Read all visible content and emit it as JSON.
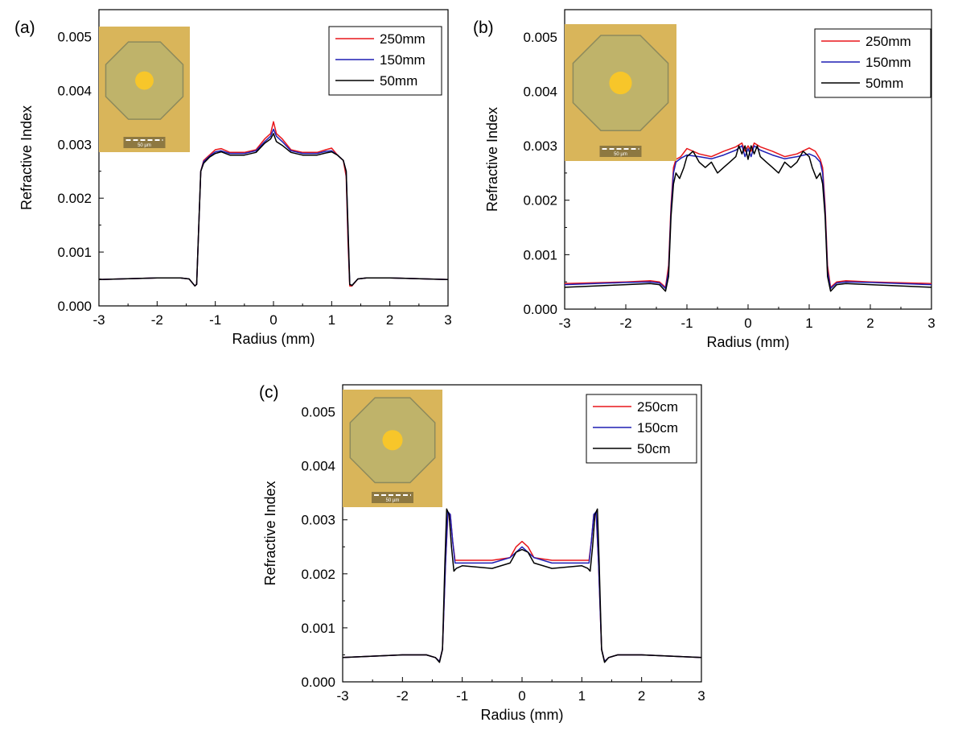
{
  "colors": {
    "red": "#e8161b",
    "blue": "#1f1fb4",
    "black": "#000000",
    "inset_bg": "#d9b55a",
    "inset_oct": "#bfb36a",
    "inset_core": "#f7c62a"
  },
  "chart_data": [
    {
      "type": "line",
      "panel_label": "(a)",
      "xlabel": "Radius (mm)",
      "ylabel": "Refractive Index",
      "xlim": [
        -3,
        3
      ],
      "ylim": [
        0,
        0.0055
      ],
      "xticks": [
        "-3",
        "-2",
        "-1",
        "0",
        "1",
        "2",
        "3"
      ],
      "yticks": [
        "0.000",
        "0.001",
        "0.002",
        "0.003",
        "0.004",
        "0.005"
      ],
      "legend_position": "top-right",
      "inset_scale_label": "50 µm",
      "series": [
        {
          "name": "250mm",
          "color": "#e8161b",
          "x": [
            -3,
            -2,
            -1.6,
            -1.45,
            -1.35,
            -1.32,
            -1.28,
            -1.25,
            -1.2,
            -1.1,
            -1.0,
            -0.9,
            -0.75,
            -0.5,
            -0.3,
            -0.15,
            -0.05,
            0,
            0.05,
            0.15,
            0.3,
            0.5,
            0.75,
            0.9,
            1.0,
            1.1,
            1.2,
            1.25,
            1.28,
            1.31,
            1.35,
            1.45,
            1.6,
            2,
            3
          ],
          "y": [
            0.00049,
            0.00052,
            0.00052,
            0.0005,
            0.00037,
            0.0004,
            0.0016,
            0.0025,
            0.0027,
            0.0028,
            0.0029,
            0.00292,
            0.00285,
            0.00285,
            0.0029,
            0.0031,
            0.0032,
            0.00342,
            0.0032,
            0.0031,
            0.0029,
            0.00285,
            0.00285,
            0.0029,
            0.00293,
            0.0028,
            0.0027,
            0.0024,
            0.0012,
            0.00037,
            0.00037,
            0.0005,
            0.00052,
            0.00052,
            0.00049
          ]
        },
        {
          "name": "150mm",
          "color": "#1f1fb4",
          "x": [
            -3,
            -2,
            -1.6,
            -1.45,
            -1.35,
            -1.32,
            -1.28,
            -1.25,
            -1.2,
            -1.1,
            -1.0,
            -0.9,
            -0.75,
            -0.5,
            -0.3,
            -0.15,
            -0.05,
            0,
            0.05,
            0.15,
            0.3,
            0.5,
            0.75,
            0.9,
            1.0,
            1.1,
            1.2,
            1.25,
            1.28,
            1.31,
            1.35,
            1.45,
            1.6,
            2,
            3
          ],
          "y": [
            0.00049,
            0.00052,
            0.00052,
            0.0005,
            0.00037,
            0.0004,
            0.0016,
            0.0025,
            0.00268,
            0.00278,
            0.00286,
            0.00288,
            0.00283,
            0.00283,
            0.00288,
            0.00305,
            0.00315,
            0.00328,
            0.00315,
            0.00305,
            0.00288,
            0.00283,
            0.00283,
            0.00287,
            0.00288,
            0.0028,
            0.0027,
            0.0025,
            0.0014,
            0.0004,
            0.00038,
            0.0005,
            0.00052,
            0.00052,
            0.00049
          ]
        },
        {
          "name": "50mm",
          "color": "#000000",
          "x": [
            -3,
            -2,
            -1.6,
            -1.45,
            -1.35,
            -1.32,
            -1.28,
            -1.25,
            -1.2,
            -1.1,
            -1.0,
            -0.9,
            -0.75,
            -0.5,
            -0.3,
            -0.15,
            -0.05,
            0,
            0.05,
            0.15,
            0.3,
            0.5,
            0.75,
            0.9,
            1.0,
            1.1,
            1.2,
            1.25,
            1.28,
            1.31,
            1.35,
            1.45,
            1.6,
            2,
            3
          ],
          "y": [
            0.00049,
            0.00052,
            0.00052,
            0.0005,
            0.00037,
            0.0004,
            0.0016,
            0.0025,
            0.00265,
            0.00276,
            0.00283,
            0.00286,
            0.0028,
            0.0028,
            0.00285,
            0.00302,
            0.0031,
            0.0032,
            0.00305,
            0.00298,
            0.00285,
            0.0028,
            0.0028,
            0.00284,
            0.00286,
            0.0028,
            0.0027,
            0.0025,
            0.0015,
            0.0004,
            0.00038,
            0.0005,
            0.00052,
            0.00052,
            0.00049
          ]
        }
      ]
    },
    {
      "type": "line",
      "panel_label": "(b)",
      "xlabel": "Radius (mm)",
      "ylabel": "Refractive Index",
      "xlim": [
        -3,
        3
      ],
      "ylim": [
        0,
        0.0055
      ],
      "xticks": [
        "-3",
        "-2",
        "-1",
        "0",
        "1",
        "2",
        "3"
      ],
      "yticks": [
        "0.000",
        "0.001",
        "0.002",
        "0.003",
        "0.004",
        "0.005"
      ],
      "legend_position": "top-right",
      "inset_scale_label": "50 µm",
      "series": [
        {
          "name": "250mm",
          "color": "#e8161b",
          "x": [
            -3,
            -2,
            -1.6,
            -1.45,
            -1.35,
            -1.3,
            -1.26,
            -1.22,
            -1.18,
            -1.1,
            -1.0,
            -0.8,
            -0.6,
            -0.4,
            -0.2,
            -0.1,
            -0.05,
            0,
            0.05,
            0.1,
            0.2,
            0.4,
            0.6,
            0.8,
            1.0,
            1.1,
            1.18,
            1.22,
            1.26,
            1.3,
            1.35,
            1.45,
            1.6,
            2,
            3
          ],
          "y": [
            0.00047,
            0.0005,
            0.00052,
            0.0005,
            0.0004,
            0.0008,
            0.0019,
            0.0026,
            0.00275,
            0.0028,
            0.00295,
            0.00285,
            0.0028,
            0.0029,
            0.00298,
            0.00305,
            0.0029,
            0.003,
            0.0029,
            0.00305,
            0.00298,
            0.0029,
            0.0028,
            0.00285,
            0.00296,
            0.0029,
            0.00275,
            0.0026,
            0.0019,
            0.0008,
            0.0004,
            0.0005,
            0.00052,
            0.0005,
            0.00047
          ]
        },
        {
          "name": "150mm",
          "color": "#1f1fb4",
          "x": [
            -3,
            -2,
            -1.6,
            -1.45,
            -1.35,
            -1.3,
            -1.26,
            -1.22,
            -1.18,
            -1.1,
            -1.0,
            -0.8,
            -0.6,
            -0.4,
            -0.2,
            -0.1,
            -0.05,
            0,
            0.05,
            0.1,
            0.2,
            0.4,
            0.6,
            0.8,
            1.0,
            1.1,
            1.18,
            1.22,
            1.26,
            1.3,
            1.35,
            1.45,
            1.6,
            2,
            3
          ],
          "y": [
            0.00045,
            0.00049,
            0.0005,
            0.00048,
            0.00038,
            0.0007,
            0.0018,
            0.0025,
            0.0027,
            0.00277,
            0.00283,
            0.0028,
            0.00276,
            0.00283,
            0.00292,
            0.003,
            0.0028,
            0.00295,
            0.0028,
            0.003,
            0.00292,
            0.00283,
            0.00276,
            0.0028,
            0.00285,
            0.0028,
            0.0027,
            0.0025,
            0.0018,
            0.0007,
            0.00038,
            0.00048,
            0.0005,
            0.00049,
            0.00045
          ]
        },
        {
          "name": "50mm",
          "color": "#000000",
          "x": [
            -3,
            -2,
            -1.6,
            -1.45,
            -1.35,
            -1.3,
            -1.26,
            -1.22,
            -1.18,
            -1.12,
            -1.05,
            -1.0,
            -0.9,
            -0.8,
            -0.7,
            -0.6,
            -0.5,
            -0.4,
            -0.3,
            -0.2,
            -0.15,
            -0.1,
            -0.05,
            0,
            0.05,
            0.1,
            0.15,
            0.2,
            0.3,
            0.4,
            0.5,
            0.6,
            0.7,
            0.8,
            0.9,
            1.0,
            1.05,
            1.12,
            1.18,
            1.22,
            1.26,
            1.3,
            1.35,
            1.45,
            1.6,
            2,
            3
          ],
          "y": [
            0.0004,
            0.00045,
            0.00047,
            0.00045,
            0.00033,
            0.0006,
            0.0017,
            0.0023,
            0.0025,
            0.0024,
            0.0026,
            0.0028,
            0.0029,
            0.0027,
            0.0026,
            0.0027,
            0.0025,
            0.0026,
            0.0027,
            0.0028,
            0.003,
            0.00285,
            0.003,
            0.00275,
            0.003,
            0.00285,
            0.003,
            0.0028,
            0.0027,
            0.0026,
            0.0025,
            0.0027,
            0.0026,
            0.0027,
            0.0029,
            0.0028,
            0.0026,
            0.0024,
            0.0025,
            0.0023,
            0.0017,
            0.0006,
            0.00033,
            0.00045,
            0.00047,
            0.00045,
            0.0004
          ]
        }
      ]
    },
    {
      "type": "line",
      "panel_label": "(c)",
      "xlabel": "Radius (mm)",
      "ylabel": "Refractive Index",
      "xlim": [
        -3,
        3
      ],
      "ylim": [
        0,
        0.0055
      ],
      "xticks": [
        "-3",
        "-2",
        "-1",
        "0",
        "1",
        "2",
        "3"
      ],
      "yticks": [
        "0.000",
        "0.001",
        "0.002",
        "0.003",
        "0.004",
        "0.005"
      ],
      "legend_position": "top-right",
      "inset_scale_label": "50 µm",
      "series": [
        {
          "name": "250cm",
          "color": "#e8161b",
          "x": [
            -3,
            -2,
            -1.6,
            -1.45,
            -1.38,
            -1.33,
            -1.28,
            -1.24,
            -1.2,
            -1.16,
            -1.12,
            -1.08,
            -1.0,
            -0.5,
            -0.2,
            -0.1,
            0,
            0.1,
            0.2,
            0.5,
            1.0,
            1.08,
            1.12,
            1.16,
            1.2,
            1.24,
            1.28,
            1.33,
            1.38,
            1.45,
            1.6,
            2,
            3
          ],
          "y": [
            0.00045,
            0.0005,
            0.0005,
            0.00045,
            0.00038,
            0.0006,
            0.0022,
            0.0031,
            0.0031,
            0.0026,
            0.00225,
            0.00225,
            0.00225,
            0.00225,
            0.0023,
            0.0025,
            0.0026,
            0.0025,
            0.0023,
            0.00225,
            0.00225,
            0.00225,
            0.00225,
            0.0026,
            0.0031,
            0.0031,
            0.0022,
            0.0006,
            0.00038,
            0.00045,
            0.0005,
            0.0005,
            0.00045
          ]
        },
        {
          "name": "150cm",
          "color": "#1f1fb4",
          "x": [
            -3,
            -2,
            -1.6,
            -1.45,
            -1.38,
            -1.33,
            -1.28,
            -1.24,
            -1.2,
            -1.16,
            -1.12,
            -1.08,
            -1.0,
            -0.5,
            -0.2,
            -0.1,
            0,
            0.1,
            0.2,
            0.5,
            1.0,
            1.08,
            1.12,
            1.16,
            1.2,
            1.24,
            1.28,
            1.33,
            1.38,
            1.45,
            1.6,
            2,
            3
          ],
          "y": [
            0.00045,
            0.0005,
            0.0005,
            0.00045,
            0.00038,
            0.0006,
            0.0022,
            0.00315,
            0.0031,
            0.0026,
            0.0022,
            0.0022,
            0.0022,
            0.0022,
            0.0023,
            0.0024,
            0.0025,
            0.0024,
            0.0023,
            0.0022,
            0.0022,
            0.0022,
            0.0022,
            0.0026,
            0.0031,
            0.00315,
            0.0022,
            0.0006,
            0.00038,
            0.00045,
            0.0005,
            0.0005,
            0.00045
          ]
        },
        {
          "name": "50cm",
          "color": "#000000",
          "x": [
            -3,
            -2,
            -1.6,
            -1.45,
            -1.38,
            -1.33,
            -1.29,
            -1.26,
            -1.22,
            -1.18,
            -1.14,
            -1.1,
            -1.0,
            -0.5,
            -0.2,
            -0.1,
            0,
            0.1,
            0.2,
            0.5,
            1.0,
            1.1,
            1.14,
            1.18,
            1.22,
            1.26,
            1.29,
            1.33,
            1.38,
            1.45,
            1.6,
            2,
            3
          ],
          "y": [
            0.00045,
            0.0005,
            0.0005,
            0.00045,
            0.00036,
            0.0006,
            0.0022,
            0.0032,
            0.0031,
            0.0025,
            0.00205,
            0.0021,
            0.00215,
            0.0021,
            0.0022,
            0.0024,
            0.00245,
            0.0024,
            0.0022,
            0.0021,
            0.00215,
            0.0021,
            0.00205,
            0.0025,
            0.0031,
            0.0032,
            0.0022,
            0.0006,
            0.00036,
            0.00045,
            0.0005,
            0.0005,
            0.00045
          ]
        }
      ]
    }
  ]
}
